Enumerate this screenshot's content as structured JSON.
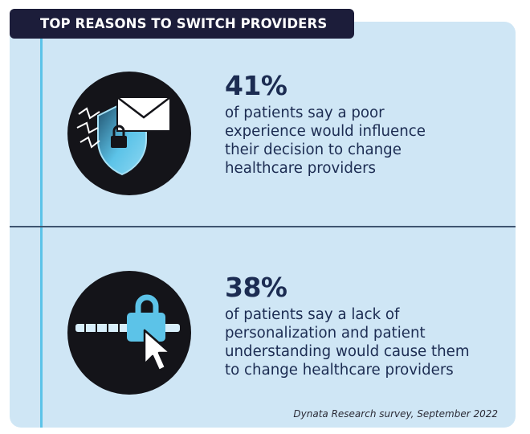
{
  "header": {
    "title": "TOP REASONS TO SWITCH PROVIDERS"
  },
  "stats": [
    {
      "percent": "41%",
      "line1": "of patients say a poor",
      "line2": "experience would influence",
      "line3": "their decision to change",
      "line4": "healthcare providers",
      "icon": "shield-envelope-lock-icon"
    },
    {
      "percent": "38%",
      "line1": "of patients say a lack of",
      "line2": "personalization and patient",
      "line3": "understanding would cause them",
      "line4": "to change healthcare providers",
      "icon": "lock-slider-cursor-icon"
    }
  ],
  "source": "Dynata Research survey, September 2022",
  "colors": {
    "card": "#cfe6f5",
    "title_bg": "#1c1d3a",
    "accent": "#5cc3e8",
    "text": "#1c2c52",
    "circle": "#141419"
  }
}
